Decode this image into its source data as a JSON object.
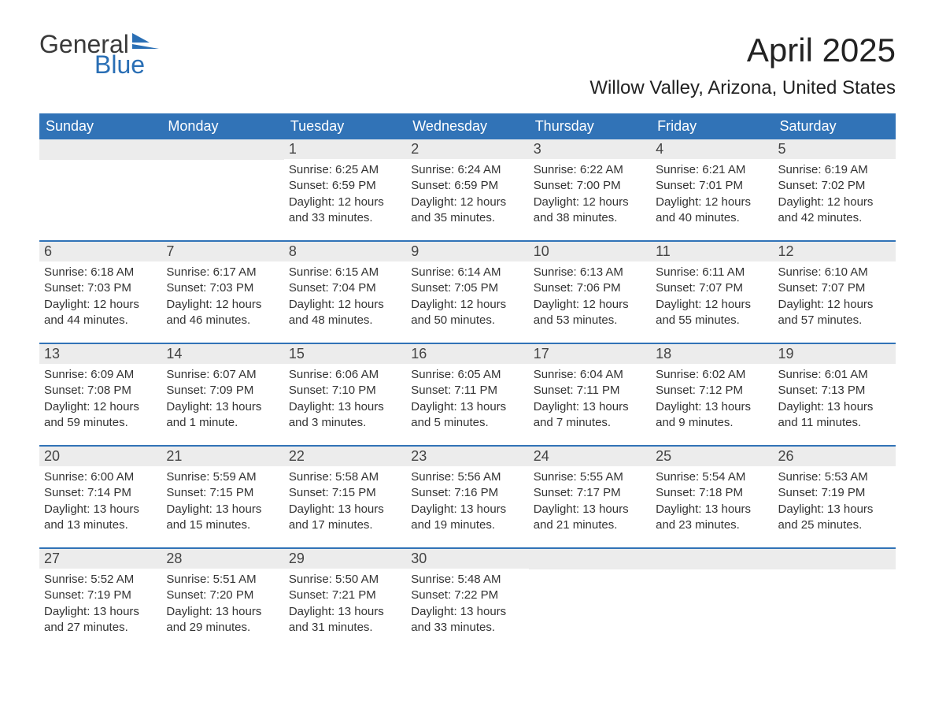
{
  "logo": {
    "general": "General",
    "blue": "Blue",
    "flag_color": "#2a6fb5"
  },
  "title": "April 2025",
  "location": "Willow Valley, Arizona, United States",
  "colors": {
    "header_bg": "#3173b7",
    "header_text": "#ffffff",
    "daynum_bg": "#ececec",
    "text": "#333333",
    "week_border": "#3173b7"
  },
  "fonts": {
    "title_pt": 42,
    "location_pt": 24,
    "dayheader_pt": 18,
    "daynum_pt": 18,
    "body_pt": 15
  },
  "day_labels": [
    "Sunday",
    "Monday",
    "Tuesday",
    "Wednesday",
    "Thursday",
    "Friday",
    "Saturday"
  ],
  "weeks": [
    [
      {
        "n": "",
        "sr": "",
        "ss": "",
        "dl": ""
      },
      {
        "n": "",
        "sr": "",
        "ss": "",
        "dl": ""
      },
      {
        "n": "1",
        "sr": "Sunrise: 6:25 AM",
        "ss": "Sunset: 6:59 PM",
        "dl": "Daylight: 12 hours and 33 minutes."
      },
      {
        "n": "2",
        "sr": "Sunrise: 6:24 AM",
        "ss": "Sunset: 6:59 PM",
        "dl": "Daylight: 12 hours and 35 minutes."
      },
      {
        "n": "3",
        "sr": "Sunrise: 6:22 AM",
        "ss": "Sunset: 7:00 PM",
        "dl": "Daylight: 12 hours and 38 minutes."
      },
      {
        "n": "4",
        "sr": "Sunrise: 6:21 AM",
        "ss": "Sunset: 7:01 PM",
        "dl": "Daylight: 12 hours and 40 minutes."
      },
      {
        "n": "5",
        "sr": "Sunrise: 6:19 AM",
        "ss": "Sunset: 7:02 PM",
        "dl": "Daylight: 12 hours and 42 minutes."
      }
    ],
    [
      {
        "n": "6",
        "sr": "Sunrise: 6:18 AM",
        "ss": "Sunset: 7:03 PM",
        "dl": "Daylight: 12 hours and 44 minutes."
      },
      {
        "n": "7",
        "sr": "Sunrise: 6:17 AM",
        "ss": "Sunset: 7:03 PM",
        "dl": "Daylight: 12 hours and 46 minutes."
      },
      {
        "n": "8",
        "sr": "Sunrise: 6:15 AM",
        "ss": "Sunset: 7:04 PM",
        "dl": "Daylight: 12 hours and 48 minutes."
      },
      {
        "n": "9",
        "sr": "Sunrise: 6:14 AM",
        "ss": "Sunset: 7:05 PM",
        "dl": "Daylight: 12 hours and 50 minutes."
      },
      {
        "n": "10",
        "sr": "Sunrise: 6:13 AM",
        "ss": "Sunset: 7:06 PM",
        "dl": "Daylight: 12 hours and 53 minutes."
      },
      {
        "n": "11",
        "sr": "Sunrise: 6:11 AM",
        "ss": "Sunset: 7:07 PM",
        "dl": "Daylight: 12 hours and 55 minutes."
      },
      {
        "n": "12",
        "sr": "Sunrise: 6:10 AM",
        "ss": "Sunset: 7:07 PM",
        "dl": "Daylight: 12 hours and 57 minutes."
      }
    ],
    [
      {
        "n": "13",
        "sr": "Sunrise: 6:09 AM",
        "ss": "Sunset: 7:08 PM",
        "dl": "Daylight: 12 hours and 59 minutes."
      },
      {
        "n": "14",
        "sr": "Sunrise: 6:07 AM",
        "ss": "Sunset: 7:09 PM",
        "dl": "Daylight: 13 hours and 1 minute."
      },
      {
        "n": "15",
        "sr": "Sunrise: 6:06 AM",
        "ss": "Sunset: 7:10 PM",
        "dl": "Daylight: 13 hours and 3 minutes."
      },
      {
        "n": "16",
        "sr": "Sunrise: 6:05 AM",
        "ss": "Sunset: 7:11 PM",
        "dl": "Daylight: 13 hours and 5 minutes."
      },
      {
        "n": "17",
        "sr": "Sunrise: 6:04 AM",
        "ss": "Sunset: 7:11 PM",
        "dl": "Daylight: 13 hours and 7 minutes."
      },
      {
        "n": "18",
        "sr": "Sunrise: 6:02 AM",
        "ss": "Sunset: 7:12 PM",
        "dl": "Daylight: 13 hours and 9 minutes."
      },
      {
        "n": "19",
        "sr": "Sunrise: 6:01 AM",
        "ss": "Sunset: 7:13 PM",
        "dl": "Daylight: 13 hours and 11 minutes."
      }
    ],
    [
      {
        "n": "20",
        "sr": "Sunrise: 6:00 AM",
        "ss": "Sunset: 7:14 PM",
        "dl": "Daylight: 13 hours and 13 minutes."
      },
      {
        "n": "21",
        "sr": "Sunrise: 5:59 AM",
        "ss": "Sunset: 7:15 PM",
        "dl": "Daylight: 13 hours and 15 minutes."
      },
      {
        "n": "22",
        "sr": "Sunrise: 5:58 AM",
        "ss": "Sunset: 7:15 PM",
        "dl": "Daylight: 13 hours and 17 minutes."
      },
      {
        "n": "23",
        "sr": "Sunrise: 5:56 AM",
        "ss": "Sunset: 7:16 PM",
        "dl": "Daylight: 13 hours and 19 minutes."
      },
      {
        "n": "24",
        "sr": "Sunrise: 5:55 AM",
        "ss": "Sunset: 7:17 PM",
        "dl": "Daylight: 13 hours and 21 minutes."
      },
      {
        "n": "25",
        "sr": "Sunrise: 5:54 AM",
        "ss": "Sunset: 7:18 PM",
        "dl": "Daylight: 13 hours and 23 minutes."
      },
      {
        "n": "26",
        "sr": "Sunrise: 5:53 AM",
        "ss": "Sunset: 7:19 PM",
        "dl": "Daylight: 13 hours and 25 minutes."
      }
    ],
    [
      {
        "n": "27",
        "sr": "Sunrise: 5:52 AM",
        "ss": "Sunset: 7:19 PM",
        "dl": "Daylight: 13 hours and 27 minutes."
      },
      {
        "n": "28",
        "sr": "Sunrise: 5:51 AM",
        "ss": "Sunset: 7:20 PM",
        "dl": "Daylight: 13 hours and 29 minutes."
      },
      {
        "n": "29",
        "sr": "Sunrise: 5:50 AM",
        "ss": "Sunset: 7:21 PM",
        "dl": "Daylight: 13 hours and 31 minutes."
      },
      {
        "n": "30",
        "sr": "Sunrise: 5:48 AM",
        "ss": "Sunset: 7:22 PM",
        "dl": "Daylight: 13 hours and 33 minutes."
      },
      {
        "n": "",
        "sr": "",
        "ss": "",
        "dl": ""
      },
      {
        "n": "",
        "sr": "",
        "ss": "",
        "dl": ""
      },
      {
        "n": "",
        "sr": "",
        "ss": "",
        "dl": ""
      }
    ]
  ]
}
